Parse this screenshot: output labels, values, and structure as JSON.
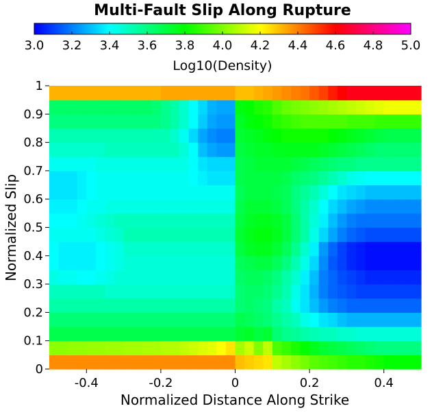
{
  "chart_data": {
    "type": "heatmap",
    "title": "Multi-Fault Slip Along Rupture",
    "xlabel": "Normalized Distance Along Strike",
    "ylabel": "Normalized Slip",
    "xlim": [
      -0.5,
      0.5
    ],
    "ylim": [
      0,
      1
    ],
    "x_ticks": [
      -0.4,
      -0.2,
      0,
      0.2,
      0.4
    ],
    "x_tick_labels": [
      "-0.4",
      "-0.2",
      "0",
      "0.2",
      "0.4"
    ],
    "y_ticks": [
      0,
      0.1,
      0.2,
      0.3,
      0.4,
      0.5,
      0.6,
      0.7,
      0.8,
      0.9,
      1
    ],
    "y_tick_labels": [
      "0",
      "0.1",
      "0.2",
      "0.3",
      "0.4",
      "0.5",
      "0.6",
      "0.7",
      "0.8",
      "0.9",
      "1"
    ],
    "colorbar": {
      "label": "Log10(Density)",
      "range": [
        3.0,
        5.0
      ],
      "ticks": [
        3.0,
        3.2,
        3.4,
        3.6,
        3.8,
        4.0,
        4.2,
        4.4,
        4.6,
        4.8,
        5.0
      ],
      "tick_labels": [
        "3.0",
        "3.2",
        "3.4",
        "3.6",
        "3.8",
        "4.0",
        "4.2",
        "4.4",
        "4.6",
        "4.8",
        "5.0"
      ],
      "placement": "top",
      "colormap": [
        "#0000ff",
        "#00ffff",
        "#00ff00",
        "#ffff00",
        "#ff0000",
        "#ff00ff"
      ]
    },
    "grid": false,
    "x_centers": [
      -0.4875,
      -0.4625,
      -0.4375,
      -0.4125,
      -0.3875,
      -0.3625,
      -0.3375,
      -0.3125,
      -0.2875,
      -0.2625,
      -0.2375,
      -0.2125,
      -0.1875,
      -0.1625,
      -0.1375,
      -0.1125,
      -0.0875,
      -0.0625,
      -0.0375,
      -0.0125,
      0.0125,
      0.0375,
      0.0625,
      0.0875,
      0.1125,
      0.1375,
      0.1625,
      0.1875,
      0.2125,
      0.2375,
      0.2625,
      0.2875,
      0.3125,
      0.3375,
      0.3625,
      0.3875,
      0.4125,
      0.4375,
      0.4625,
      0.4875
    ],
    "y_centers": [
      0.025,
      0.075,
      0.125,
      0.175,
      0.225,
      0.275,
      0.325,
      0.375,
      0.425,
      0.475,
      0.525,
      0.575,
      0.625,
      0.675,
      0.725,
      0.775,
      0.825,
      0.875,
      0.925,
      0.975
    ],
    "z": [
      [
        4.38,
        4.38,
        4.38,
        4.38,
        4.38,
        4.38,
        4.38,
        4.38,
        4.38,
        4.38,
        4.38,
        4.38,
        4.38,
        4.38,
        4.38,
        4.38,
        4.38,
        4.38,
        4.38,
        4.38,
        4.3,
        4.28,
        4.26,
        4.24,
        4.1,
        4.06,
        4.02,
        3.98,
        3.94,
        3.92,
        3.9,
        3.88,
        3.86,
        3.86,
        3.84,
        3.82,
        3.8,
        3.8,
        3.8,
        3.8
      ],
      [
        4.02,
        4.02,
        4.03,
        4.03,
        4.04,
        4.04,
        4.05,
        4.05,
        4.06,
        4.06,
        4.07,
        4.07,
        4.08,
        4.08,
        4.1,
        4.12,
        4.14,
        4.16,
        4.2,
        4.24,
        4.06,
        4.12,
        4.0,
        4.1,
        3.92,
        3.88,
        3.84,
        3.8,
        3.76,
        3.72,
        3.7,
        3.68,
        3.66,
        3.64,
        3.62,
        3.6,
        3.6,
        3.6,
        3.6,
        3.6
      ],
      [
        3.68,
        3.68,
        3.68,
        3.68,
        3.68,
        3.68,
        3.68,
        3.68,
        3.68,
        3.68,
        3.68,
        3.68,
        3.68,
        3.68,
        3.68,
        3.68,
        3.68,
        3.68,
        3.68,
        3.68,
        3.72,
        3.74,
        3.7,
        3.72,
        3.62,
        3.58,
        3.56,
        3.54,
        3.52,
        3.5,
        3.5,
        3.48,
        3.48,
        3.46,
        3.46,
        3.46,
        3.46,
        3.46,
        3.46,
        3.46
      ],
      [
        3.62,
        3.62,
        3.62,
        3.62,
        3.62,
        3.62,
        3.62,
        3.62,
        3.62,
        3.62,
        3.62,
        3.62,
        3.62,
        3.62,
        3.62,
        3.62,
        3.62,
        3.62,
        3.62,
        3.62,
        3.68,
        3.66,
        3.64,
        3.62,
        3.58,
        3.54,
        3.5,
        3.44,
        3.4,
        3.36,
        3.34,
        3.3,
        3.28,
        3.28,
        3.28,
        3.28,
        3.28,
        3.28,
        3.28,
        3.28
      ],
      [
        3.54,
        3.54,
        3.54,
        3.54,
        3.54,
        3.54,
        3.54,
        3.54,
        3.54,
        3.54,
        3.54,
        3.54,
        3.54,
        3.54,
        3.54,
        3.54,
        3.54,
        3.54,
        3.54,
        3.54,
        3.62,
        3.64,
        3.62,
        3.6,
        3.54,
        3.5,
        3.42,
        3.36,
        3.3,
        3.24,
        3.2,
        3.18,
        3.16,
        3.16,
        3.16,
        3.16,
        3.16,
        3.16,
        3.16,
        3.16
      ],
      [
        3.5,
        3.5,
        3.5,
        3.5,
        3.5,
        3.5,
        3.48,
        3.48,
        3.48,
        3.48,
        3.48,
        3.48,
        3.48,
        3.48,
        3.48,
        3.48,
        3.48,
        3.48,
        3.48,
        3.48,
        3.62,
        3.64,
        3.64,
        3.62,
        3.58,
        3.52,
        3.44,
        3.36,
        3.28,
        3.2,
        3.16,
        3.14,
        3.12,
        3.1,
        3.1,
        3.1,
        3.1,
        3.1,
        3.1,
        3.1
      ],
      [
        3.44,
        3.42,
        3.42,
        3.4,
        3.4,
        3.42,
        3.44,
        3.46,
        3.46,
        3.46,
        3.46,
        3.46,
        3.46,
        3.46,
        3.46,
        3.46,
        3.46,
        3.46,
        3.46,
        3.46,
        3.64,
        3.66,
        3.66,
        3.64,
        3.6,
        3.54,
        3.48,
        3.38,
        3.3,
        3.2,
        3.16,
        3.12,
        3.1,
        3.08,
        3.06,
        3.06,
        3.06,
        3.06,
        3.06,
        3.06
      ],
      [
        3.4,
        3.38,
        3.38,
        3.38,
        3.38,
        3.4,
        3.42,
        3.44,
        3.46,
        3.46,
        3.46,
        3.46,
        3.46,
        3.46,
        3.46,
        3.46,
        3.46,
        3.46,
        3.46,
        3.46,
        3.66,
        3.68,
        3.7,
        3.7,
        3.66,
        3.6,
        3.52,
        3.44,
        3.34,
        3.22,
        3.14,
        3.1,
        3.06,
        3.04,
        3.02,
        3.02,
        3.02,
        3.02,
        3.02,
        3.02
      ],
      [
        3.4,
        3.38,
        3.38,
        3.38,
        3.38,
        3.4,
        3.42,
        3.44,
        3.48,
        3.48,
        3.48,
        3.48,
        3.48,
        3.48,
        3.48,
        3.48,
        3.48,
        3.48,
        3.48,
        3.48,
        3.7,
        3.74,
        3.76,
        3.76,
        3.72,
        3.66,
        3.58,
        3.48,
        3.38,
        3.24,
        3.16,
        3.1,
        3.06,
        3.04,
        3.02,
        3.02,
        3.02,
        3.02,
        3.02,
        3.02
      ],
      [
        3.42,
        3.42,
        3.42,
        3.42,
        3.42,
        3.44,
        3.46,
        3.48,
        3.52,
        3.52,
        3.52,
        3.52,
        3.52,
        3.52,
        3.52,
        3.52,
        3.52,
        3.52,
        3.52,
        3.52,
        3.72,
        3.76,
        3.78,
        3.78,
        3.76,
        3.7,
        3.62,
        3.54,
        3.44,
        3.34,
        3.26,
        3.2,
        3.16,
        3.14,
        3.12,
        3.12,
        3.12,
        3.12,
        3.12,
        3.12
      ],
      [
        3.4,
        3.4,
        3.4,
        3.42,
        3.44,
        3.46,
        3.48,
        3.5,
        3.5,
        3.5,
        3.5,
        3.5,
        3.5,
        3.5,
        3.5,
        3.5,
        3.5,
        3.5,
        3.5,
        3.5,
        3.7,
        3.74,
        3.76,
        3.76,
        3.74,
        3.7,
        3.62,
        3.54,
        3.46,
        3.38,
        3.3,
        3.24,
        3.2,
        3.18,
        3.18,
        3.18,
        3.18,
        3.18,
        3.18,
        3.18
      ],
      [
        3.38,
        3.38,
        3.38,
        3.4,
        3.42,
        3.42,
        3.44,
        3.44,
        3.44,
        3.44,
        3.44,
        3.44,
        3.44,
        3.44,
        3.44,
        3.44,
        3.44,
        3.44,
        3.44,
        3.44,
        3.68,
        3.72,
        3.72,
        3.72,
        3.7,
        3.66,
        3.6,
        3.54,
        3.48,
        3.4,
        3.34,
        3.3,
        3.26,
        3.24,
        3.22,
        3.22,
        3.22,
        3.22,
        3.22,
        3.22
      ],
      [
        3.36,
        3.36,
        3.36,
        3.38,
        3.4,
        3.42,
        3.42,
        3.42,
        3.42,
        3.42,
        3.42,
        3.42,
        3.42,
        3.42,
        3.42,
        3.42,
        3.42,
        3.42,
        3.42,
        3.42,
        3.66,
        3.7,
        3.7,
        3.7,
        3.68,
        3.66,
        3.6,
        3.56,
        3.52,
        3.46,
        3.4,
        3.36,
        3.34,
        3.32,
        3.3,
        3.3,
        3.3,
        3.3,
        3.3,
        3.3
      ],
      [
        3.36,
        3.36,
        3.36,
        3.38,
        3.4,
        3.42,
        3.42,
        3.42,
        3.42,
        3.42,
        3.42,
        3.42,
        3.42,
        3.42,
        3.42,
        3.4,
        3.38,
        3.36,
        3.36,
        3.36,
        3.68,
        3.7,
        3.7,
        3.7,
        3.7,
        3.68,
        3.64,
        3.62,
        3.6,
        3.56,
        3.52,
        3.48,
        3.44,
        3.42,
        3.4,
        3.4,
        3.4,
        3.4,
        3.4,
        3.4
      ],
      [
        3.42,
        3.42,
        3.42,
        3.42,
        3.42,
        3.44,
        3.44,
        3.44,
        3.44,
        3.44,
        3.44,
        3.44,
        3.44,
        3.44,
        3.44,
        3.4,
        3.36,
        3.34,
        3.34,
        3.34,
        3.68,
        3.7,
        3.72,
        3.72,
        3.72,
        3.72,
        3.7,
        3.68,
        3.66,
        3.64,
        3.62,
        3.6,
        3.6,
        3.58,
        3.58,
        3.58,
        3.58,
        3.58,
        3.58,
        3.58
      ],
      [
        3.48,
        3.48,
        3.48,
        3.48,
        3.48,
        3.48,
        3.5,
        3.5,
        3.5,
        3.5,
        3.5,
        3.5,
        3.5,
        3.5,
        3.46,
        3.4,
        3.3,
        3.26,
        3.24,
        3.24,
        3.7,
        3.72,
        3.74,
        3.74,
        3.76,
        3.76,
        3.76,
        3.76,
        3.76,
        3.74,
        3.72,
        3.7,
        3.68,
        3.66,
        3.64,
        3.62,
        3.62,
        3.62,
        3.62,
        3.62
      ],
      [
        3.52,
        3.52,
        3.52,
        3.52,
        3.52,
        3.52,
        3.52,
        3.52,
        3.52,
        3.52,
        3.52,
        3.52,
        3.52,
        3.48,
        3.42,
        3.34,
        3.26,
        3.22,
        3.2,
        3.2,
        3.72,
        3.74,
        3.76,
        3.78,
        3.8,
        3.82,
        3.82,
        3.82,
        3.82,
        3.82,
        3.8,
        3.78,
        3.76,
        3.74,
        3.72,
        3.7,
        3.68,
        3.68,
        3.68,
        3.68
      ],
      [
        3.6,
        3.6,
        3.6,
        3.6,
        3.6,
        3.6,
        3.6,
        3.6,
        3.6,
        3.6,
        3.6,
        3.6,
        3.58,
        3.54,
        3.48,
        3.4,
        3.32,
        3.26,
        3.24,
        3.24,
        3.74,
        3.78,
        3.8,
        3.82,
        3.86,
        3.88,
        3.9,
        3.92,
        3.92,
        3.92,
        3.92,
        3.92,
        3.9,
        3.9,
        3.9,
        3.88,
        3.88,
        3.88,
        3.88,
        3.88
      ],
      [
        3.64,
        3.64,
        3.64,
        3.64,
        3.64,
        3.64,
        3.64,
        3.64,
        3.64,
        3.64,
        3.64,
        3.62,
        3.58,
        3.54,
        3.48,
        3.4,
        3.34,
        3.28,
        3.26,
        3.26,
        3.78,
        3.8,
        3.84,
        3.86,
        3.92,
        3.96,
        3.98,
        4.0,
        4.02,
        4.04,
        4.06,
        4.08,
        4.1,
        4.12,
        4.14,
        4.16,
        4.18,
        4.18,
        4.18,
        4.18
      ],
      [
        4.32,
        4.32,
        4.32,
        4.32,
        4.32,
        4.32,
        4.32,
        4.32,
        4.32,
        4.32,
        4.32,
        4.32,
        4.34,
        4.34,
        4.34,
        4.34,
        4.34,
        4.34,
        4.34,
        4.34,
        4.3,
        4.3,
        4.32,
        4.34,
        4.36,
        4.38,
        4.4,
        4.42,
        4.46,
        4.5,
        4.56,
        4.6,
        4.64,
        4.64,
        4.64,
        4.64,
        4.64,
        4.64,
        4.64,
        4.64
      ]
    ]
  }
}
